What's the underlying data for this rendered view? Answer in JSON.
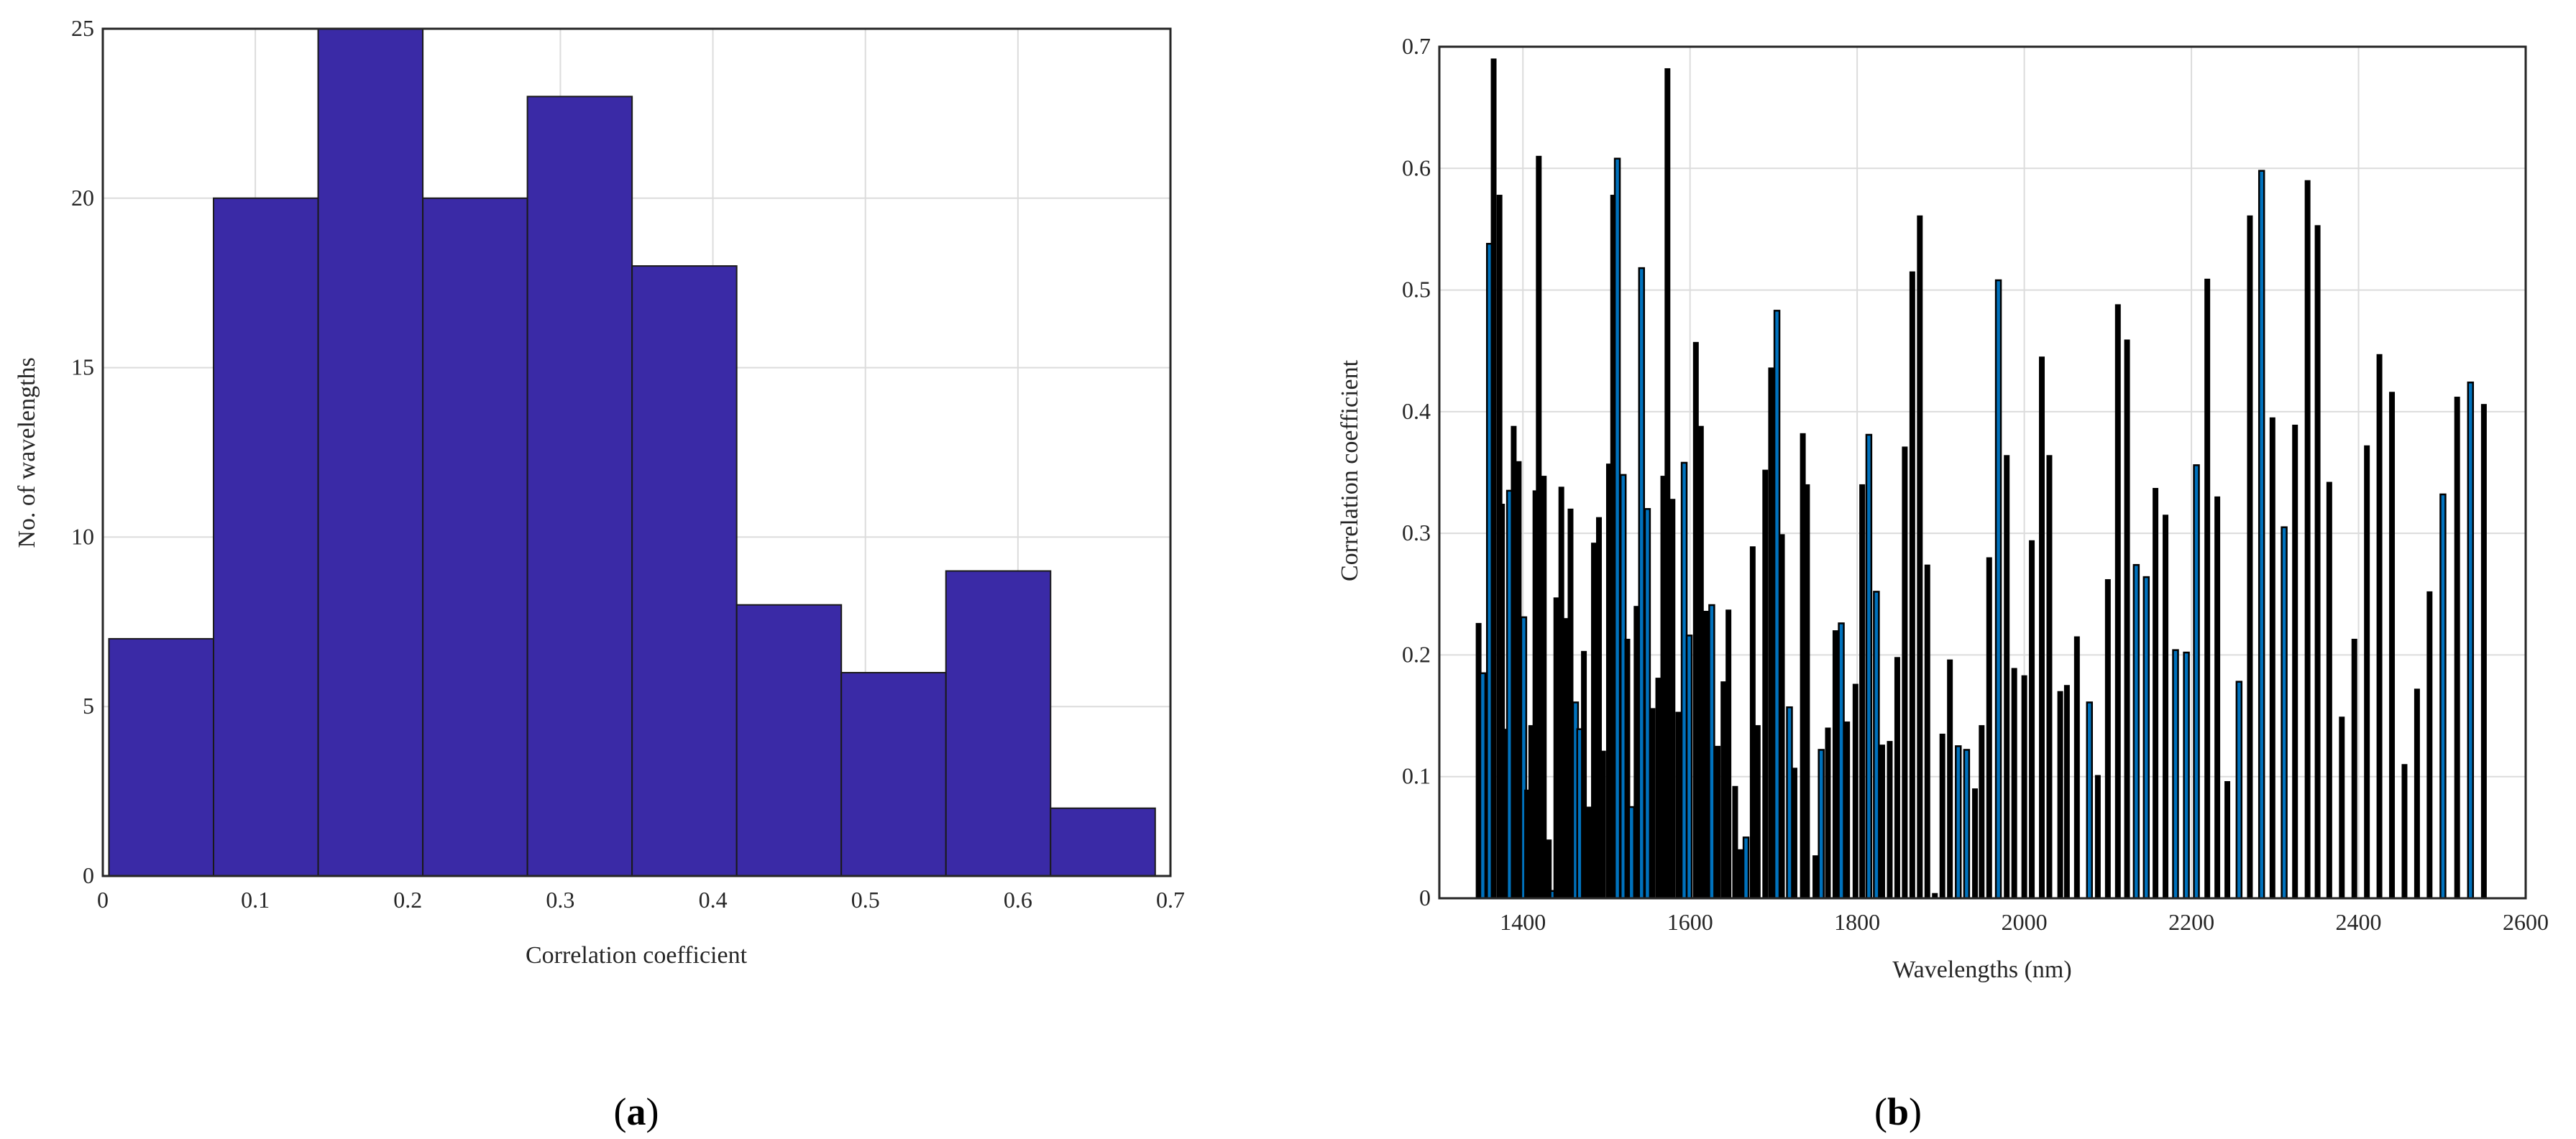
{
  "colors": {
    "histogram_fill": "#3A2AA6",
    "highlight_bar": "#0072BD",
    "bar": "#000000",
    "grid": "#DCDCDC"
  },
  "chart_data": [
    {
      "type": "bar",
      "panel_label": "a",
      "xlabel": "Correlation coefficient",
      "ylabel": "No. of wavelengths",
      "xlim": [
        0,
        0.7
      ],
      "ylim": [
        0,
        25
      ],
      "xticks": [
        "0",
        "0.1",
        "0.2",
        "0.3",
        "0.4",
        "0.5",
        "0.6",
        "0.7"
      ],
      "yticks": [
        "0",
        "5",
        "10",
        "15",
        "20",
        "25"
      ],
      "grid": true,
      "bin_edges": [
        0.004,
        0.0726,
        0.1412,
        0.2098,
        0.2784,
        0.347,
        0.4156,
        0.4842,
        0.5528,
        0.6214,
        0.69
      ],
      "values": [
        7,
        20,
        25,
        20,
        23,
        18,
        8,
        6,
        9,
        2
      ]
    },
    {
      "type": "bar",
      "panel_label": "b",
      "xlabel": "Wavelengths (nm)",
      "ylabel": "Correlation coefficient",
      "xlim": [
        1300,
        2600
      ],
      "ylim": [
        0,
        0.7
      ],
      "xticks": [
        "1400",
        "1600",
        "1800",
        "2000",
        "2200",
        "2400",
        "2600"
      ],
      "yticks": [
        "0",
        "0.1",
        "0.2",
        "0.3",
        "0.4",
        "0.5",
        "0.6",
        "0.7"
      ],
      "grid": true,
      "x": [
        1347,
        1352,
        1360,
        1365,
        1372,
        1375,
        1379,
        1384,
        1389,
        1395,
        1401,
        1405,
        1410,
        1415,
        1419,
        1425,
        1431,
        1436,
        1440,
        1446,
        1452,
        1457,
        1463,
        1468,
        1473,
        1479,
        1485,
        1491,
        1496,
        1503,
        1508,
        1513,
        1520,
        1525,
        1530,
        1536,
        1542,
        1549,
        1555,
        1562,
        1568,
        1573,
        1579,
        1586,
        1593,
        1599,
        1607,
        1613,
        1619,
        1626,
        1633,
        1640,
        1646,
        1654,
        1660,
        1667,
        1675,
        1681,
        1690,
        1697,
        1704,
        1710,
        1719,
        1725,
        1735,
        1740,
        1750,
        1757,
        1765,
        1774,
        1781,
        1788,
        1798,
        1806,
        1814,
        1823,
        1830,
        1839,
        1848,
        1857,
        1866,
        1875,
        1884,
        1893,
        1902,
        1911,
        1921,
        1931,
        1941,
        1949,
        1958,
        1969,
        1979,
        1988,
        2000,
        2009,
        2021,
        2030,
        2043,
        2051,
        2063,
        2078,
        2088,
        2100,
        2112,
        2123,
        2134,
        2146,
        2157,
        2169,
        2181,
        2194,
        2206,
        2219,
        2231,
        2243,
        2257,
        2270,
        2284,
        2297,
        2311,
        2324,
        2339,
        2351,
        2365,
        2380,
        2395,
        2410,
        2425,
        2440,
        2455,
        2470,
        2485,
        2501,
        2518,
        2534,
        2550
      ],
      "values": [
        0.226,
        0.185,
        0.538,
        0.69,
        0.578,
        0.324,
        0.139,
        0.335,
        0.388,
        0.359,
        0.231,
        0.089,
        0.142,
        0.335,
        0.61,
        0.347,
        0.048,
        0.006,
        0.247,
        0.338,
        0.23,
        0.32,
        0.161,
        0.139,
        0.203,
        0.075,
        0.292,
        0.313,
        0.121,
        0.357,
        0.578,
        0.608,
        0.348,
        0.213,
        0.075,
        0.24,
        0.518,
        0.32,
        0.156,
        0.181,
        0.347,
        0.682,
        0.328,
        0.153,
        0.358,
        0.216,
        0.457,
        0.388,
        0.236,
        0.241,
        0.125,
        0.178,
        0.237,
        0.092,
        0.04,
        0.05,
        0.289,
        0.142,
        0.352,
        0.436,
        0.483,
        0.299,
        0.157,
        0.107,
        0.382,
        0.34,
        0.035,
        0.122,
        0.14,
        0.22,
        0.226,
        0.145,
        0.176,
        0.34,
        0.381,
        0.252,
        0.126,
        0.129,
        0.198,
        0.371,
        0.515,
        0.561,
        0.274,
        0.004,
        0.135,
        0.196,
        0.125,
        0.122,
        0.09,
        0.142,
        0.28,
        0.508,
        0.364,
        0.189,
        0.183,
        0.294,
        0.445,
        0.364,
        0.17,
        0.175,
        0.215,
        0.161,
        0.101,
        0.262,
        0.488,
        0.459,
        0.274,
        0.264,
        0.337,
        0.315,
        0.204,
        0.202,
        0.356,
        0.509,
        0.33,
        0.096,
        0.178,
        0.561,
        0.598,
        0.395,
        0.305,
        0.389,
        0.59,
        0.553,
        0.342,
        0.149,
        0.213,
        0.372,
        0.447,
        0.416,
        0.11,
        0.172,
        0.252,
        0.332,
        0.412,
        0.424,
        0.406
      ],
      "highlighted": [
        0,
        1,
        1,
        0,
        0,
        0,
        0,
        1,
        0,
        0,
        1,
        0,
        0,
        0,
        0,
        0,
        0,
        1,
        0,
        0,
        0,
        0,
        1,
        1,
        0,
        0,
        0,
        0,
        0,
        0,
        0,
        1,
        1,
        0,
        1,
        0,
        1,
        1,
        0,
        0,
        0,
        0,
        0,
        0,
        1,
        1,
        0,
        0,
        0,
        1,
        0,
        0,
        0,
        0,
        0,
        1,
        0,
        0,
        0,
        0,
        1,
        0,
        1,
        0,
        0,
        0,
        0,
        1,
        0,
        0,
        1,
        0,
        0,
        0,
        1,
        1,
        0,
        0,
        0,
        0,
        0,
        0,
        0,
        0,
        0,
        0,
        1,
        1,
        0,
        0,
        0,
        1,
        0,
        0,
        0,
        0,
        0,
        0,
        0,
        0,
        0,
        1,
        0,
        0,
        0,
        0,
        1,
        1,
        0,
        0,
        1,
        1,
        1,
        0,
        0,
        0,
        1,
        0,
        1,
        0,
        1,
        0,
        0,
        0,
        0,
        0,
        0,
        0,
        0,
        0,
        0,
        0,
        0,
        1,
        0,
        1,
        0
      ]
    }
  ]
}
